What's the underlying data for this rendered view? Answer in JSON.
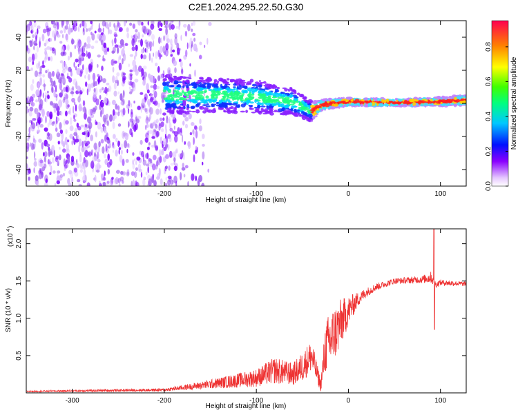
{
  "chart_data": [
    {
      "type": "heatmap",
      "title": "C2E1.2024.295.22.50.G30",
      "xlabel": "Height of straight line (km)",
      "ylabel": "Frequency (Hz)",
      "xlim": [
        -350,
        128
      ],
      "ylim": [
        -50,
        50
      ],
      "xticks": [
        "-300",
        "-200",
        "-100",
        "0",
        "100"
      ],
      "xtick_values": [
        -300,
        -200,
        -100,
        0,
        100
      ],
      "yticks": [
        "-40",
        "-20",
        "0",
        "20",
        "40"
      ],
      "ytick_values": [
        -40,
        -20,
        0,
        20,
        40
      ],
      "colorbar": {
        "label": "Normalized spectral amplitude",
        "range": [
          0.0,
          0.95
        ],
        "ticks": [
          "0.0",
          "0.2",
          "0.4",
          "0.6",
          "0.8"
        ],
        "tick_values": [
          0.0,
          0.2,
          0.4,
          0.6,
          0.8
        ]
      },
      "ridge": {
        "x": [
          -200,
          -150,
          -100,
          -60,
          -40,
          -30,
          0,
          50,
          100,
          128
        ],
        "center": [
          5,
          5,
          4,
          1,
          -5,
          -1,
          1,
          0.5,
          1,
          2
        ],
        "halfwidth": [
          12,
          10,
          10,
          8,
          6,
          3,
          2.5,
          2,
          2.5,
          3
        ]
      }
    },
    {
      "type": "line",
      "xlabel": "Height of straight line (km)",
      "ylabel": "SNR (10 * v/v)",
      "scale_label": "(x10",
      "scale_exponent": "4",
      "xlim": [
        -350,
        128
      ],
      "ylim": [
        0,
        2.2
      ],
      "xticks": [
        "-300",
        "-200",
        "-100",
        "0",
        "100"
      ],
      "xtick_values": [
        -300,
        -200,
        -100,
        0,
        100
      ],
      "yticks": [
        "0.5",
        "1.0",
        "1.5",
        "2.0"
      ],
      "ytick_values": [
        0.5,
        1.0,
        1.5,
        2.0
      ],
      "color": "#ee3333",
      "series_envelope": {
        "x": [
          -350,
          -200,
          -160,
          -100,
          -80,
          -60,
          -50,
          -40,
          -30,
          -25,
          -20,
          -10,
          0,
          10,
          20,
          30,
          50,
          80,
          90,
          95,
          100,
          128
        ],
        "y": [
          0.02,
          0.04,
          0.1,
          0.2,
          0.3,
          0.25,
          0.35,
          0.5,
          0.1,
          0.6,
          0.7,
          0.9,
          1.1,
          1.25,
          1.35,
          1.42,
          1.5,
          1.52,
          1.55,
          1.45,
          1.48,
          1.46
        ],
        "noise": [
          0.01,
          0.02,
          0.05,
          0.12,
          0.18,
          0.15,
          0.2,
          0.22,
          0.08,
          0.35,
          0.4,
          0.35,
          0.2,
          0.1,
          0.06,
          0.05,
          0.04,
          0.05,
          0.08,
          0.04,
          0.04,
          0.03
        ]
      },
      "spike": {
        "x": 93,
        "y_max": 2.2,
        "y_min": 0.85
      }
    }
  ]
}
